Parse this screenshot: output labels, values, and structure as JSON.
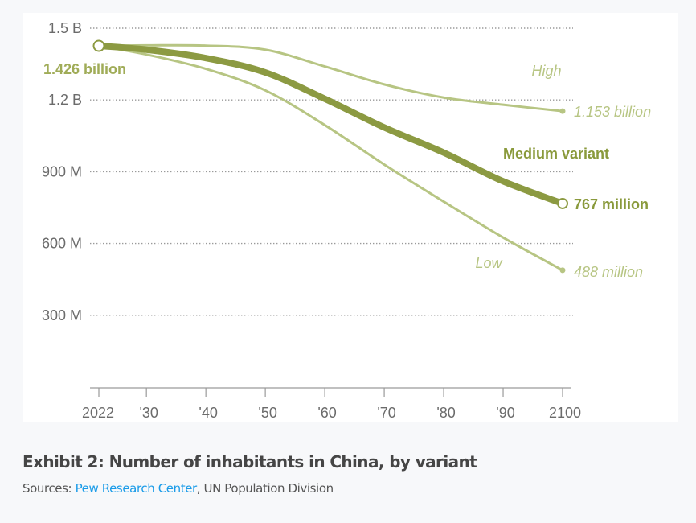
{
  "chart_data": {
    "type": "line",
    "title": "Exhibit 2: Number of inhabitants in China, by variant",
    "xlabel": "",
    "ylabel": "",
    "x": [
      2022,
      2030,
      2040,
      2050,
      2060,
      2070,
      2080,
      2090,
      2100
    ],
    "x_tick_values": [
      2022,
      2030,
      2040,
      2050,
      2060,
      2070,
      2080,
      2090,
      2100
    ],
    "x_tick_labels": [
      "2022",
      "'30",
      "'40",
      "'50",
      "'60",
      "'70",
      "'80",
      "'90",
      "2100"
    ],
    "xlim": [
      2022,
      2100
    ],
    "y_unit": "billions",
    "y_tick_values": [
      0.3,
      0.6,
      0.9,
      1.2,
      1.5
    ],
    "y_tick_labels": [
      "300 M",
      "600 M",
      "900 M",
      "1.2 B",
      "1.5 B"
    ],
    "ylim": [
      0,
      1.5
    ],
    "grid": "horizontal-dotted",
    "series": [
      {
        "name": "High",
        "label": "High",
        "end_label": "1.153 billion",
        "style": "thin",
        "color": "#b7c583",
        "values": [
          1.426,
          1.428,
          1.427,
          1.41,
          1.34,
          1.265,
          1.21,
          1.18,
          1.153
        ]
      },
      {
        "name": "Medium variant",
        "label": "Medium variant",
        "end_label": "767 million",
        "start_label": "1.426 billion",
        "style": "thick",
        "color": "#8c9a42",
        "values": [
          1.426,
          1.41,
          1.375,
          1.315,
          1.205,
          1.085,
          0.98,
          0.86,
          0.767
        ]
      },
      {
        "name": "Low",
        "label": "Low",
        "end_label": "488 million",
        "style": "thin",
        "color": "#b7c583",
        "values": [
          1.426,
          1.39,
          1.33,
          1.24,
          1.095,
          0.93,
          0.775,
          0.625,
          0.488
        ]
      }
    ]
  },
  "colors": {
    "page_background": "#f7f8fa",
    "panel_background": "#ffffff",
    "light_series": "#b7c583",
    "medium_series": "#8c9a42",
    "medium_label": "#8a9a3c",
    "start_label": "#a0ac58",
    "tick_text": "#6b6b6b",
    "gridline": "#9a9a9a",
    "link": "#1a9be8"
  },
  "caption": {
    "title": "Exhibit 2: Number of inhabitants in China, by variant",
    "sources_prefix": "Sources: ",
    "sources_link": "Pew Research Center",
    "sources_suffix": ", UN Population Division"
  }
}
